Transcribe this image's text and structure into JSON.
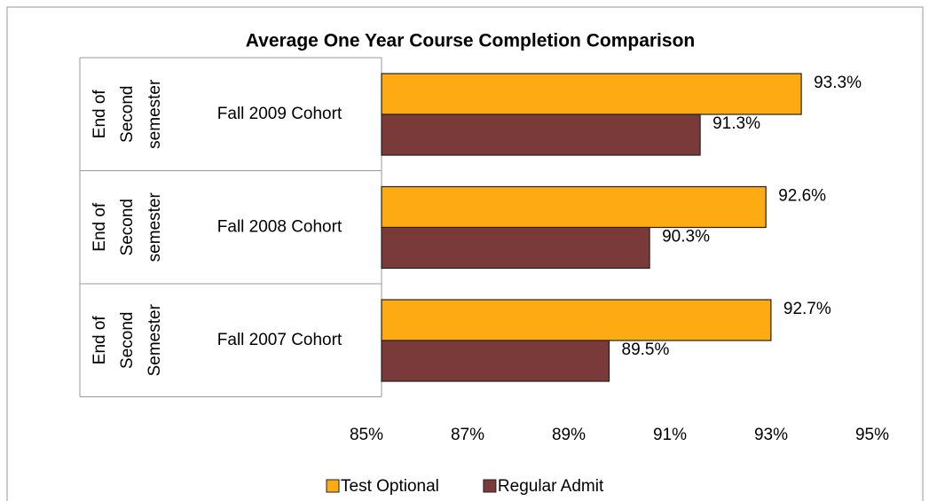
{
  "chart_data": {
    "type": "bar",
    "orientation": "horizontal",
    "title": "Average One Year Course Completion Comparison",
    "categories": [
      "Fall 2009 Cohort",
      "Fall 2008 Cohort",
      "Fall 2007 Cohort"
    ],
    "category_groups": [
      [
        "End of",
        "Second",
        "semester"
      ],
      [
        "End of",
        "Second",
        "semester"
      ],
      [
        "End of",
        "Second",
        "Semester"
      ]
    ],
    "series": [
      {
        "name": "Test Optional",
        "color": "#fdaa13",
        "values": [
          93.3,
          92.6,
          92.7
        ],
        "value_labels": [
          "93.3%",
          "92.6%",
          "92.7%"
        ]
      },
      {
        "name": "Regular Admit",
        "color": "#7b3a3a",
        "values": [
          91.3,
          90.3,
          89.5
        ],
        "value_labels": [
          "91.3%",
          "90.3%",
          "89.5%"
        ]
      }
    ],
    "xlim": [
      85,
      95
    ],
    "xticks": [
      {
        "value": 85,
        "label": "85%"
      },
      {
        "value": 87,
        "label": "87%"
      },
      {
        "value": 89,
        "label": "89%"
      },
      {
        "value": 91,
        "label": "91%"
      },
      {
        "value": 93,
        "label": "93%"
      },
      {
        "value": 95,
        "label": "95%"
      }
    ],
    "legend": "bottom"
  }
}
